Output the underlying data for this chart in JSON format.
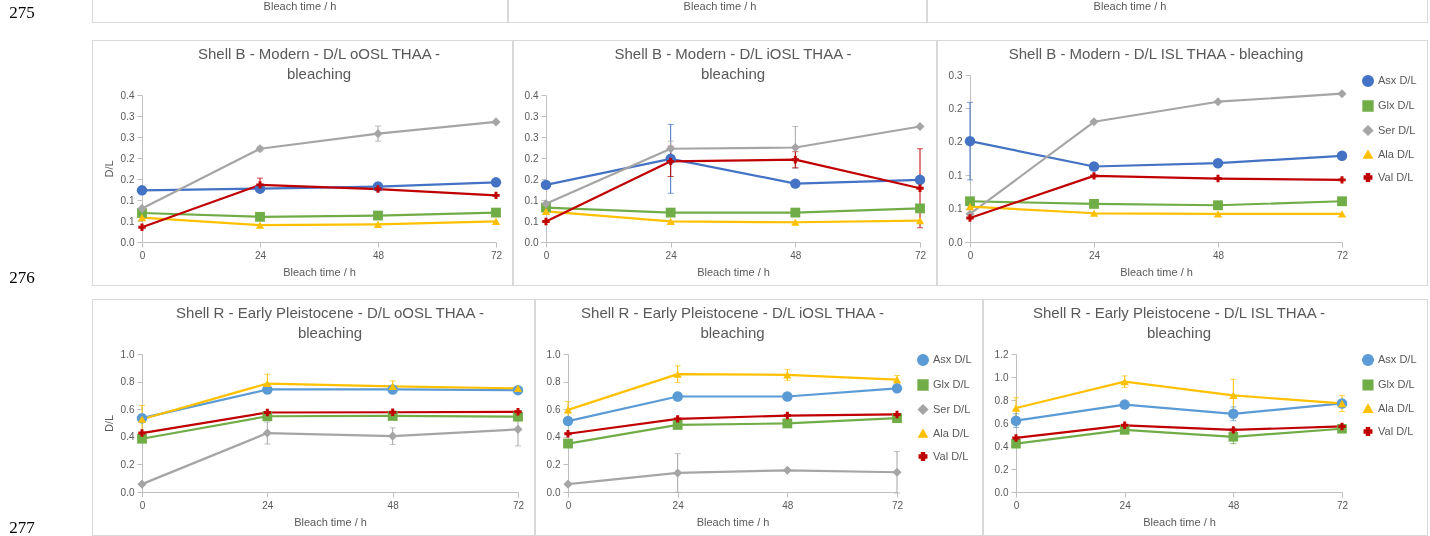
{
  "chart_data": [
    {
      "type": "other",
      "annotations": [
        "Bleach time / h",
        "Bleach time / h",
        "Bleach time / h"
      ]
    },
    {
      "type": "other",
      "annotations": [
        "275",
        "276",
        "277"
      ]
    },
    {
      "type": "line",
      "title": "Shell B - Modern - D/L oOSL THAA - bleaching",
      "xlabel": "Bleach time / h",
      "ylabel": "D/L",
      "x": [
        0,
        24,
        48,
        72
      ],
      "xlim": [
        0,
        72
      ],
      "xticks": [
        0,
        24,
        48,
        72
      ],
      "ylim": [
        0,
        0.35
      ],
      "yticks": [
        {
          "value": 0,
          "label": "0.0"
        },
        {
          "value": 0.05,
          "label": "0.1"
        },
        {
          "value": 0.1,
          "label": "0.1"
        },
        {
          "value": 0.15,
          "label": "0.2"
        },
        {
          "value": 0.2,
          "label": "0.2"
        },
        {
          "value": 0.25,
          "label": "0.3"
        },
        {
          "value": 0.3,
          "label": "0.3"
        },
        {
          "value": 0.35,
          "label": "0.4"
        }
      ],
      "series": [
        {
          "color": "#4472c4",
          "marker": "circle",
          "values": [
            0.123,
            0.127,
            0.132,
            0.142
          ]
        },
        {
          "color": "#70ad47",
          "marker": "square",
          "values": [
            0.069,
            0.06,
            0.063,
            0.07
          ]
        },
        {
          "color": "#a5a5a5",
          "marker": "diamond",
          "values": [
            0.08,
            0.222,
            0.258,
            0.286
          ],
          "errors": [
            null,
            0.005,
            0.018,
            null
          ]
        },
        {
          "color": "#ffc000",
          "marker": "triangle",
          "values": [
            0.058,
            0.04,
            0.042,
            0.049
          ]
        },
        {
          "color": "#c00000",
          "marker": "cross",
          "values": [
            0.035,
            0.136,
            0.126,
            0.111
          ],
          "errors": [
            null,
            0.016,
            null,
            null
          ]
        }
      ]
    },
    {
      "type": "line",
      "title": "Shell B - Modern - D/L iOSL THAA - bleaching",
      "xlabel": "Bleach time / h",
      "x": [
        0,
        24,
        48,
        72
      ],
      "xlim": [
        0,
        72
      ],
      "xticks": [
        0,
        24,
        48,
        72
      ],
      "ylim": [
        0,
        0.35
      ],
      "yticks": [
        {
          "value": 0,
          "label": "0.0"
        },
        {
          "value": 0.05,
          "label": "0.1"
        },
        {
          "value": 0.1,
          "label": "0.1"
        },
        {
          "value": 0.15,
          "label": "0.2"
        },
        {
          "value": 0.2,
          "label": "0.2"
        },
        {
          "value": 0.25,
          "label": "0.3"
        },
        {
          "value": 0.3,
          "label": "0.3"
        },
        {
          "value": 0.35,
          "label": "0.4"
        }
      ],
      "series": [
        {
          "color": "#4472c4",
          "marker": "circle",
          "values": [
            0.136,
            0.198,
            0.139,
            0.148
          ],
          "errors": [
            null,
            0.082,
            null,
            null
          ]
        },
        {
          "color": "#70ad47",
          "marker": "square",
          "values": [
            0.082,
            0.07,
            0.07,
            0.08
          ]
        },
        {
          "color": "#a5a5a5",
          "marker": "diamond",
          "values": [
            0.091,
            0.222,
            0.225,
            0.275
          ],
          "errors": [
            null,
            0.018,
            0.05,
            null
          ]
        },
        {
          "color": "#ffc000",
          "marker": "triangle",
          "values": [
            0.073,
            0.049,
            0.047,
            0.051
          ]
        },
        {
          "color": "#c00000",
          "marker": "cross",
          "values": [
            0.049,
            0.192,
            0.196,
            0.128
          ],
          "errors": [
            null,
            0.036,
            0.019,
            0.094
          ]
        }
      ]
    },
    {
      "type": "line",
      "title": "Shell B - Modern - D/L ISL THAA - bleaching",
      "xlabel": "Bleach time / h",
      "legend": "right",
      "x": [
        0,
        24,
        48,
        72
      ],
      "xlim": [
        0,
        72
      ],
      "xticks": [
        0,
        24,
        48,
        72
      ],
      "ylim": [
        0,
        0.25
      ],
      "yticks": [
        {
          "value": 0,
          "label": "0.0"
        },
        {
          "value": 0.05,
          "label": "0.1"
        },
        {
          "value": 0.1,
          "label": "0.1"
        },
        {
          "value": 0.15,
          "label": "0.2"
        },
        {
          "value": 0.2,
          "label": "0.2"
        },
        {
          "value": 0.25,
          "label": "0.3"
        }
      ],
      "series": [
        {
          "name": "Asx D/L",
          "color": "#4472c4",
          "marker": "circle",
          "values": [
            0.151,
            0.113,
            0.118,
            0.129
          ],
          "errors": [
            0.058,
            null,
            null,
            null
          ]
        },
        {
          "name": "Glx D/L",
          "color": "#70ad47",
          "marker": "square",
          "values": [
            0.061,
            0.057,
            0.055,
            0.061
          ]
        },
        {
          "name": "Ser D/L",
          "color": "#a5a5a5",
          "marker": "diamond",
          "values": [
            0.042,
            0.18,
            0.21,
            0.222
          ]
        },
        {
          "name": "Ala D/L",
          "color": "#ffc000",
          "marker": "triangle",
          "values": [
            0.053,
            0.043,
            0.042,
            0.042
          ]
        },
        {
          "name": "Val D/L",
          "color": "#c00000",
          "marker": "cross",
          "values": [
            0.036,
            0.099,
            0.095,
            0.093
          ]
        }
      ]
    },
    {
      "type": "line",
      "title": "Shell R - Early Pleistocene - D/L oOSL THAA - bleaching",
      "xlabel": "Bleach time / h",
      "ylabel": "D/L",
      "x": [
        0,
        24,
        48,
        72
      ],
      "xlim": [
        0,
        72
      ],
      "xticks": [
        0,
        24,
        48,
        72
      ],
      "ylim": [
        0,
        1
      ],
      "yticks": [
        {
          "value": 0,
          "label": "0.0"
        },
        0.2,
        0.4,
        0.6,
        0.8,
        {
          "value": 1,
          "label": "1.0"
        }
      ],
      "series": [
        {
          "color": "#5b9bd5",
          "marker": "circle",
          "values": [
            0.535,
            0.743,
            0.743,
            0.738
          ]
        },
        {
          "color": "#70ad47",
          "marker": "square",
          "values": [
            0.386,
            0.549,
            0.551,
            0.546
          ]
        },
        {
          "color": "#a5a5a5",
          "marker": "diamond",
          "values": [
            0.057,
            0.427,
            0.405,
            0.454
          ],
          "errors": [
            null,
            0.08,
            0.06,
            0.12
          ]
        },
        {
          "color": "#ffc000",
          "marker": "triangle",
          "values": [
            0.527,
            0.786,
            0.765,
            0.751
          ],
          "errors": [
            0.1,
            0.068,
            0.04,
            null
          ]
        },
        {
          "color": "#c00000",
          "marker": "cross",
          "values": [
            0.427,
            0.576,
            0.578,
            0.581
          ]
        }
      ]
    },
    {
      "type": "line",
      "title": "Shell R - Early Pleistocene - D/L iOSL THAA - bleaching",
      "xlabel": "Bleach time / h",
      "legend": "right",
      "x": [
        0,
        24,
        48,
        72
      ],
      "xlim": [
        0,
        72
      ],
      "xticks": [
        0,
        24,
        48,
        72
      ],
      "ylim": [
        0,
        1
      ],
      "yticks": [
        {
          "value": 0,
          "label": "0.0"
        },
        0.2,
        0.4,
        0.6,
        0.8,
        {
          "value": 1,
          "label": "1.0"
        }
      ],
      "series": [
        {
          "name": "Asx D/L",
          "color": "#5b9bd5",
          "marker": "circle",
          "values": [
            0.514,
            0.692,
            0.692,
            0.751
          ],
          "errors": [
            null,
            0.03,
            null,
            null
          ]
        },
        {
          "name": "Glx D/L",
          "color": "#70ad47",
          "marker": "square",
          "values": [
            0.351,
            0.486,
            0.497,
            0.535
          ]
        },
        {
          "name": "Ser D/L",
          "color": "#a5a5a5",
          "marker": "diamond",
          "values": [
            0.057,
            0.138,
            0.157,
            0.143
          ],
          "errors": [
            null,
            0.14,
            null,
            0.15
          ]
        },
        {
          "name": "Ala D/L",
          "color": "#ffc000",
          "marker": "triangle",
          "values": [
            0.595,
            0.854,
            0.849,
            0.814
          ],
          "errors": [
            0.06,
            0.06,
            0.04,
            0.03
          ]
        },
        {
          "name": "Val D/L",
          "color": "#c00000",
          "marker": "cross",
          "values": [
            0.422,
            0.53,
            0.554,
            0.562
          ]
        }
      ]
    },
    {
      "type": "line",
      "title": "Shell R - Early Pleistocene - D/L ISL THAA - bleaching",
      "xlabel": "Bleach time / h",
      "legend": "right",
      "x": [
        0,
        24,
        48,
        72
      ],
      "xlim": [
        0,
        72
      ],
      "xticks": [
        0,
        24,
        48,
        72
      ],
      "ylim": [
        0,
        1.2
      ],
      "yticks": [
        {
          "value": 0,
          "label": "0.0"
        },
        0.2,
        0.4,
        0.6,
        0.8,
        {
          "value": 1,
          "label": "1.0"
        },
        1.2
      ],
      "series": [
        {
          "name": "Asx D/L",
          "color": "#5b9bd5",
          "marker": "circle",
          "values": [
            0.62,
            0.76,
            0.68,
            0.77
          ],
          "errors": [
            0.06,
            null,
            0.06,
            null
          ]
        },
        {
          "name": "Glx D/L",
          "color": "#70ad47",
          "marker": "square",
          "values": [
            0.42,
            0.54,
            0.48,
            0.55
          ],
          "errors": [
            null,
            null,
            0.06,
            null
          ]
        },
        {
          "name": "Ala D/L",
          "color": "#ffc000",
          "marker": "triangle",
          "values": [
            0.73,
            0.96,
            0.84,
            0.77
          ],
          "errors": [
            0.09,
            0.05,
            0.14,
            0.07
          ]
        },
        {
          "name": "Val D/L",
          "color": "#c00000",
          "marker": "cross",
          "values": [
            0.47,
            0.58,
            0.54,
            0.57
          ]
        }
      ]
    }
  ]
}
